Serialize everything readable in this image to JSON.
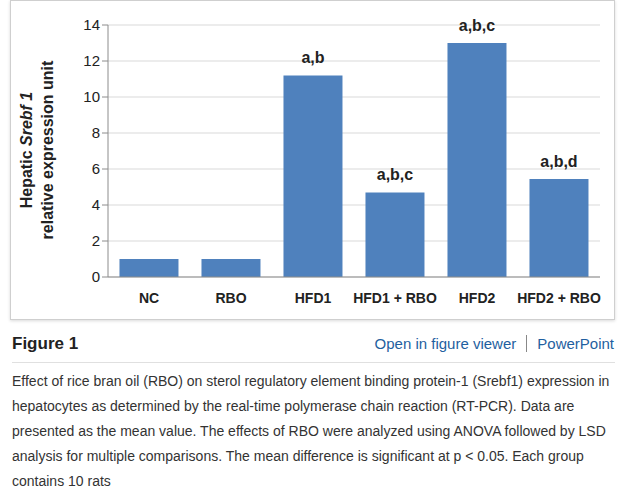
{
  "chart_data": {
    "type": "bar",
    "ylabel": "Hepatic Srebf 1 relative expression unit",
    "categories": [
      "NC",
      "RBO",
      "HFD1",
      "HFD1 + RBO",
      "HFD2",
      "HFD2 + RBO"
    ],
    "values": [
      1.0,
      1.0,
      11.2,
      4.7,
      13.0,
      5.45
    ],
    "color": "#4f81bd",
    "ylim": [
      0,
      14
    ],
    "yticks": [
      0,
      2,
      4,
      6,
      8,
      10,
      12,
      14
    ],
    "grid": true,
    "annotations": [
      {
        "category": "HFD1",
        "text": "a,b"
      },
      {
        "category": "HFD1 + RBO",
        "text": "a,b,c"
      },
      {
        "category": "HFD2",
        "text": "a,b,c"
      },
      {
        "category": "HFD2 + RBO",
        "text": "a,b,d"
      }
    ]
  },
  "figure_label": "Figure 1",
  "links": [
    "Open in figure viewer",
    "PowerPoint"
  ],
  "caption": "Effect of rice bran oil (RBO) on sterol regulatory element binding protein-1 (Srebf1) expression in hepatocytes as determined by the real-time polymerase chain reaction (RT-PCR). Data are presented as the mean value. The effects of RBO were analyzed using ANOVA followed by LSD analysis for multiple comparisons. The mean difference is significant at p < 0.05. Each group contains 10 rats"
}
